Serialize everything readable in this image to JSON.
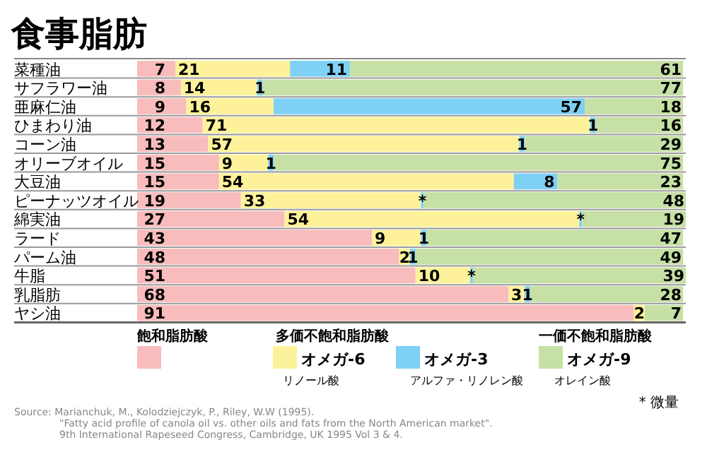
{
  "chart_data": {
    "type": "bar",
    "orientation": "horizontal",
    "stacked": true,
    "title": "食事脂肪",
    "categories": [
      "菜種油",
      "サフラワー油",
      "亜麻仁油",
      "ひまわり油",
      "コーン油",
      "オリーブオイル",
      "大豆油",
      "ピーナッツオイル",
      "綿実油",
      "ラード",
      "パーム油",
      "牛脂",
      "乳脂肪",
      "ヤシ油"
    ],
    "series": [
      {
        "name": "飽和脂肪酸",
        "color": "#f8bcbc",
        "values": [
          7,
          8,
          9,
          12,
          13,
          15,
          15,
          19,
          27,
          43,
          48,
          51,
          68,
          91
        ],
        "value_labels": [
          "7",
          "8",
          "9",
          "12",
          "13",
          "15",
          "15",
          "19",
          "27",
          "43",
          "48",
          "51",
          "68",
          "91"
        ]
      },
      {
        "name": "オメガ-6",
        "color": "#fdf29a",
        "values": [
          21,
          14,
          16,
          71,
          57,
          9,
          54,
          33,
          54,
          9,
          2,
          10,
          3,
          2
        ],
        "value_labels": [
          "21",
          "14",
          "16",
          "71",
          "57",
          "9",
          "54",
          "33",
          "54",
          "9",
          "2",
          "10",
          "3",
          "2"
        ]
      },
      {
        "name": "オメガ-3",
        "color": "#7fd0f5",
        "values": [
          11,
          1,
          57,
          1,
          1,
          1,
          8,
          0.5,
          0.5,
          1,
          1,
          0.5,
          1,
          null
        ],
        "value_labels": [
          "11",
          "1",
          "57",
          "1",
          "1",
          "1",
          "8",
          "*",
          "*",
          "1",
          "1",
          "*",
          "1",
          null
        ]
      },
      {
        "name": "オメガ-9",
        "color": "#c6e0a5",
        "values": [
          61,
          77,
          18,
          16,
          29,
          75,
          23,
          48,
          19,
          47,
          49,
          39,
          28,
          7
        ],
        "value_labels": [
          "61",
          "77",
          "18",
          "16",
          "29",
          "75",
          "23",
          "48",
          "19",
          "47",
          "49",
          "39",
          "28",
          "7"
        ]
      }
    ],
    "legend": "bottom",
    "annotations": [
      "多価不飽和脂肪酸",
      "一価不飽和脂肪酸",
      "リノール酸",
      "アルファ・リノレン酸",
      "オレイン酸",
      "*  微量",
      "Source: Marianchuk, M., Kolodziejczyk, P., Riley, W.W (1995).",
      "\"Fatty acid profile of canola oil vs. other oils and fats from the North American market\".",
      "9th International Rapeseed Congress, Cambridge, UK 1995 Vol 3 & 4."
    ]
  }
}
